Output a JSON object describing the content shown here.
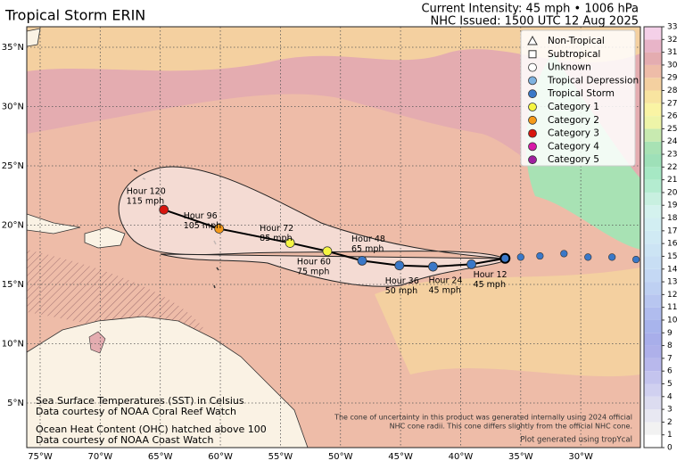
{
  "title": "Tropical Storm ERIN",
  "header": [
    "Current Intensity: 45 mph • 1006 hPa",
    "NHC Issued: 1500 UTC 12 Aug 2025"
  ],
  "lon_ticks": [
    {
      "value": -75,
      "label": "75°W"
    },
    {
      "value": -70,
      "label": "70°W"
    },
    {
      "value": -65,
      "label": "65°W"
    },
    {
      "value": -60,
      "label": "60°W"
    },
    {
      "value": -55,
      "label": "55°W"
    },
    {
      "value": -50,
      "label": "50°W"
    },
    {
      "value": -45,
      "label": "45°W"
    },
    {
      "value": -40,
      "label": "40°W"
    },
    {
      "value": -35,
      "label": "35°W"
    },
    {
      "value": -30,
      "label": "30°W"
    }
  ],
  "lat_ticks": [
    {
      "value": 5,
      "label": "5°N"
    },
    {
      "value": 10,
      "label": "10°N"
    },
    {
      "value": 15,
      "label": "15°N"
    },
    {
      "value": 20,
      "label": "20°N"
    },
    {
      "value": 25,
      "label": "25°N"
    },
    {
      "value": 30,
      "label": "30°N"
    },
    {
      "value": 35,
      "label": "35°N"
    }
  ],
  "legend": [
    {
      "label": "Non-Tropical",
      "shape": "triangle",
      "color": "#ffffff"
    },
    {
      "label": "Subtropical",
      "shape": "square",
      "color": "#ffffff"
    },
    {
      "label": "Unknown",
      "shape": "circle",
      "color": "#ffffff"
    },
    {
      "label": "Tropical Depression",
      "shape": "circle",
      "color": "#7fb2e0"
    },
    {
      "label": "Tropical Storm",
      "shape": "circle",
      "color": "#3a78c8"
    },
    {
      "label": "Category 1",
      "shape": "circle",
      "color": "#f5f542"
    },
    {
      "label": "Category 2",
      "shape": "circle",
      "color": "#f59a1a"
    },
    {
      "label": "Category 3",
      "shape": "circle",
      "color": "#d8150e"
    },
    {
      "label": "Category 4",
      "shape": "circle",
      "color": "#d81aa8"
    },
    {
      "label": "Category 5",
      "shape": "circle",
      "color": "#a020a0"
    }
  ],
  "colorbar": {
    "ticks": [
      0,
      1,
      2,
      3,
      4,
      5,
      6,
      7,
      8,
      9,
      10,
      11,
      12,
      13,
      14,
      15,
      16,
      17,
      18,
      19,
      20,
      21,
      22,
      23,
      24,
      25,
      26,
      27,
      28,
      29,
      30,
      31,
      32,
      33
    ],
    "colors": [
      "#ffffff",
      "#f2f2f2",
      "#e8e8f2",
      "#dcdcf0",
      "#d0d0f0",
      "#c4c4ee",
      "#b8b8ec",
      "#aeb0ea",
      "#a8aeea",
      "#a8b4ec",
      "#b0bcee",
      "#b8c6f0",
      "#bed0f2",
      "#c4d8f4",
      "#c8def4",
      "#cce4f4",
      "#d0eaf4",
      "#d2eef2",
      "#d4f2ee",
      "#c8f0e0",
      "#b4ecd0",
      "#a6e8c4",
      "#9ee0b8",
      "#a8e2b4",
      "#c8eab0",
      "#eef4a8",
      "#faf4a4",
      "#f8e4a0",
      "#f4d0a0",
      "#eebca8",
      "#e4acb0",
      "#e8b4c8",
      "#f4d0e8"
    ]
  },
  "storm": {
    "past": [
      {
        "lat": 17.3,
        "lon": -35.0
      },
      {
        "lat": 17.4,
        "lon": -33.4
      },
      {
        "lat": 17.6,
        "lon": -31.4
      },
      {
        "lat": 17.3,
        "lon": -29.4
      },
      {
        "lat": 17.3,
        "lon": -27.4
      },
      {
        "lat": 17.1,
        "lon": -25.4
      }
    ],
    "current": {
      "lat": 17.2,
      "lon": -36.3
    },
    "forecast": [
      {
        "hour": "Hour 12",
        "wind": "45 mph",
        "lat": 16.7,
        "lon": -39.1,
        "category": 4
      },
      {
        "hour": "Hour 24",
        "wind": "45 mph",
        "lat": 16.5,
        "lon": -42.3,
        "category": 4
      },
      {
        "hour": "Hour 36",
        "wind": "50 mph",
        "lat": 16.6,
        "lon": -45.1,
        "category": 4
      },
      {
        "hour": "Hour 48",
        "wind": "65 mph",
        "lat": 17.0,
        "lon": -48.2,
        "category": 4
      },
      {
        "hour": "Hour 60",
        "wind": "75 mph",
        "lat": 17.8,
        "lon": -51.1,
        "category": 5
      },
      {
        "hour": "Hour 72",
        "wind": "85 mph",
        "lat": 18.5,
        "lon": -54.2,
        "category": 5
      },
      {
        "hour": "Hour 96",
        "wind": "105 mph",
        "lat": 19.7,
        "lon": -60.1,
        "category": 6
      },
      {
        "hour": "Hour 120",
        "wind": "115 mph",
        "lat": 21.3,
        "lon": -64.7,
        "category": 7
      }
    ]
  },
  "notes": [
    "Sea Surface Temperatures (SST) in Celsius",
    "Data courtesy of NOAA Coral Reef Watch",
    "Ocean Heat Content (OHC) hatched above 100",
    "Data courtesy of NOAA Coast Watch"
  ],
  "cone_note": [
    "The cone of uncertainty in this product was generated internally using 2024 official",
    "NHC cone radii. This cone differs slightly from the official NHC cone."
  ],
  "credit": "Plot generated using tropYcal"
}
